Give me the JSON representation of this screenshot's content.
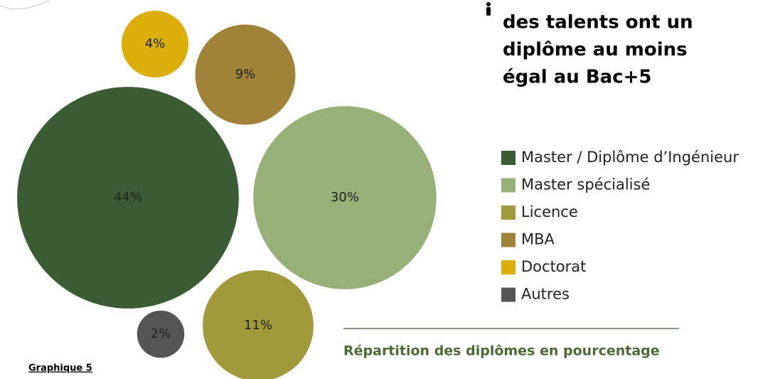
{
  "chart_data": {
    "type": "bubble",
    "title_lines": [
      "des talents ont un",
      "diplôme au moins",
      "égal au Bac+5"
    ],
    "subtitle": "Répartition des diplômes en pourcentage",
    "caption": "Graphique 5",
    "categories": [
      "Master / Diplôme d’Ingénieur",
      "Master spécialisé",
      "Licence",
      "MBA",
      "Doctorat",
      "Autres"
    ],
    "values": [
      44,
      30,
      11,
      9,
      4,
      2
    ],
    "value_labels": [
      "44%",
      "30%",
      "11%",
      "9%",
      "4%",
      "2%"
    ],
    "colors": [
      "#3b5b34",
      "#97b078",
      "#a09a3b",
      "#a08238",
      "#dcae0a",
      "#555555"
    ],
    "legend": "right"
  }
}
